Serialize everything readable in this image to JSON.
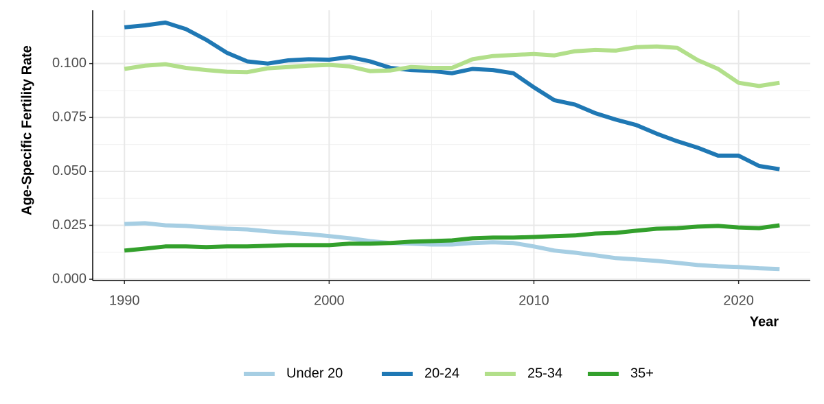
{
  "chart_data": {
    "type": "line",
    "x_label": "Year",
    "y_label": "Age-Specific Fertility Rate",
    "x": [
      1990,
      1991,
      1992,
      1993,
      1994,
      1995,
      1996,
      1997,
      1998,
      1999,
      2000,
      2001,
      2002,
      2003,
      2004,
      2005,
      2006,
      2007,
      2008,
      2009,
      2010,
      2011,
      2012,
      2013,
      2014,
      2015,
      2016,
      2017,
      2018,
      2019,
      2020,
      2021,
      2022
    ],
    "series": [
      {
        "name": "Under 20",
        "color": "#a6cee3",
        "values": [
          0.0256,
          0.026,
          0.025,
          0.0247,
          0.024,
          0.0234,
          0.0231,
          0.0222,
          0.0215,
          0.0209,
          0.02,
          0.019,
          0.0177,
          0.0168,
          0.0165,
          0.0161,
          0.0161,
          0.0168,
          0.0171,
          0.0168,
          0.0152,
          0.0133,
          0.0123,
          0.0111,
          0.0098,
          0.0092,
          0.0085,
          0.0076,
          0.0066,
          0.006,
          0.0057,
          0.0051,
          0.0047
        ]
      },
      {
        "name": "20-24",
        "color": "#1f78b4",
        "values": [
          0.1168,
          0.1177,
          0.119,
          0.116,
          0.111,
          0.105,
          0.101,
          0.1,
          0.1015,
          0.102,
          0.1018,
          0.103,
          0.101,
          0.098,
          0.097,
          0.0966,
          0.0955,
          0.0975,
          0.097,
          0.0955,
          0.089,
          0.083,
          0.081,
          0.077,
          0.074,
          0.0715,
          0.0675,
          0.064,
          0.061,
          0.0573,
          0.0573,
          0.0525,
          0.051
        ]
      },
      {
        "name": "25-34",
        "color": "#b2df8a",
        "values": [
          0.0975,
          0.099,
          0.0997,
          0.098,
          0.097,
          0.0962,
          0.096,
          0.0978,
          0.0984,
          0.099,
          0.0994,
          0.0987,
          0.0965,
          0.0968,
          0.0984,
          0.098,
          0.098,
          0.102,
          0.1035,
          0.104,
          0.1044,
          0.1038,
          0.1057,
          0.1063,
          0.106,
          0.1076,
          0.1079,
          0.1073,
          0.1016,
          0.0975,
          0.0911,
          0.0896,
          0.0911
        ]
      },
      {
        "name": "35+",
        "color": "#33a02c",
        "values": [
          0.0133,
          0.0142,
          0.0152,
          0.0152,
          0.0149,
          0.0152,
          0.0152,
          0.0155,
          0.0158,
          0.0158,
          0.0158,
          0.0165,
          0.0165,
          0.0168,
          0.0174,
          0.0177,
          0.018,
          0.019,
          0.0193,
          0.0193,
          0.0196,
          0.02,
          0.0203,
          0.0212,
          0.0215,
          0.0225,
          0.0234,
          0.0237,
          0.0244,
          0.0247,
          0.024,
          0.0237,
          0.025
        ]
      }
    ],
    "xlim": [
      1988.45,
      2023.5
    ],
    "ylim": [
      -0.0006,
      0.1247
    ],
    "xticks": [
      1990,
      2000,
      2010,
      2020
    ],
    "yticks": [
      {
        "value": 0,
        "label": "0.000"
      },
      {
        "value": 0.025,
        "label": "0.025"
      },
      {
        "value": 0.05,
        "label": "0.050"
      },
      {
        "value": 0.075,
        "label": "0.075"
      },
      {
        "value": 0.1,
        "label": "0.100"
      }
    ],
    "xminorticks": [
      1995,
      2005,
      2015
    ],
    "yminorticks": [
      0.0125,
      0.0375,
      0.0625,
      0.0875,
      0.1125
    ],
    "grid": true,
    "legend": "bottom"
  }
}
